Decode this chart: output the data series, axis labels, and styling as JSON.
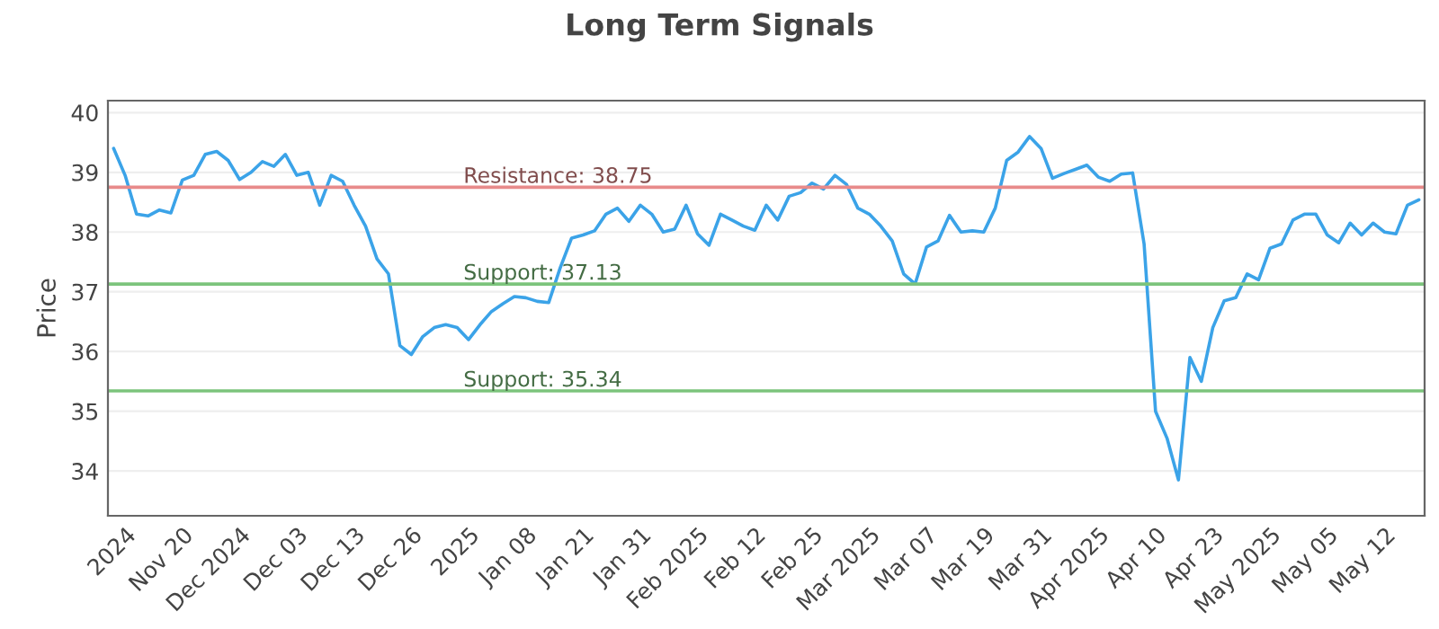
{
  "chart_data": {
    "type": "line",
    "title": "Long Term Signals",
    "ylabel": "Price",
    "categories": [
      null,
      "2024",
      null,
      null,
      null,
      null,
      "Nov 20",
      null,
      null,
      null,
      null,
      "Dec 2024",
      null,
      null,
      null,
      null,
      "Dec 03",
      null,
      null,
      null,
      null,
      "Dec 13",
      null,
      null,
      null,
      null,
      "Dec 26",
      null,
      null,
      null,
      null,
      "2025",
      null,
      null,
      null,
      null,
      "Jan 08",
      null,
      null,
      null,
      null,
      "Jan 21",
      null,
      null,
      null,
      null,
      "Jan 31",
      null,
      null,
      null,
      null,
      "Feb 2025",
      null,
      null,
      null,
      null,
      "Feb 12",
      null,
      null,
      null,
      null,
      "Feb 25",
      null,
      null,
      null,
      null,
      "Mar 2025",
      null,
      null,
      null,
      null,
      "Mar 07",
      null,
      null,
      null,
      null,
      "Mar 19",
      null,
      null,
      null,
      null,
      "Mar 31",
      null,
      null,
      null,
      null,
      "Apr 2025",
      null,
      null,
      null,
      null,
      "Apr 10",
      null,
      null,
      null,
      null,
      "Apr 23",
      null,
      null,
      null,
      null,
      "May 2025",
      null,
      null,
      null,
      null,
      "May 05",
      null,
      null,
      null,
      null,
      "May 12",
      null,
      null,
      null
    ],
    "series": [
      {
        "color": "#3ba3e8",
        "values": [
          39.4,
          38.95,
          38.3,
          38.27,
          38.37,
          38.32,
          38.87,
          38.95,
          39.3,
          39.35,
          39.2,
          38.88,
          39.0,
          39.18,
          39.1,
          39.3,
          38.95,
          39.0,
          38.45,
          38.95,
          38.85,
          38.45,
          38.1,
          37.55,
          37.3,
          36.1,
          35.95,
          36.25,
          36.4,
          36.45,
          36.4,
          36.2,
          36.45,
          36.67,
          36.8,
          36.92,
          36.9,
          36.84,
          36.82,
          37.4,
          37.9,
          37.95,
          38.02,
          38.3,
          38.4,
          38.18,
          38.45,
          38.3,
          38.0,
          38.05,
          38.45,
          37.97,
          37.78,
          38.3,
          38.2,
          38.1,
          38.03,
          38.45,
          38.2,
          38.6,
          38.66,
          38.82,
          38.72,
          38.95,
          38.8,
          38.4,
          38.3,
          38.1,
          37.85,
          37.3,
          37.13,
          37.75,
          37.85,
          38.28,
          38.0,
          38.02,
          38.0,
          38.4,
          39.2,
          39.34,
          39.6,
          39.4,
          38.9,
          38.98,
          39.05,
          39.12,
          38.92,
          38.85,
          38.97,
          38.99,
          37.8,
          35.0,
          34.55,
          33.85,
          35.9,
          35.5,
          36.4,
          36.85,
          36.9,
          37.3,
          37.2,
          37.73,
          37.8,
          38.2,
          38.3,
          38.3,
          37.95,
          37.82,
          38.15,
          37.95,
          38.15,
          38.0,
          37.97,
          38.45,
          38.54
        ]
      }
    ],
    "ylim": [
      33.25,
      40.2
    ],
    "yticks": [
      34,
      35,
      36,
      37,
      38,
      39,
      40
    ],
    "grid": "y",
    "marker": "none",
    "line_style": "solid",
    "legend": false,
    "ref_lines": [
      {
        "axis": "y",
        "value": 38.75,
        "label": "Resistance: 38.75",
        "color": "#e88a8a"
      },
      {
        "axis": "y",
        "value": 37.13,
        "label": "Support: 37.13",
        "color": "#7cc47c"
      },
      {
        "axis": "y",
        "value": 35.34,
        "label": "Support: 35.34",
        "color": "#7cc47c"
      }
    ]
  }
}
